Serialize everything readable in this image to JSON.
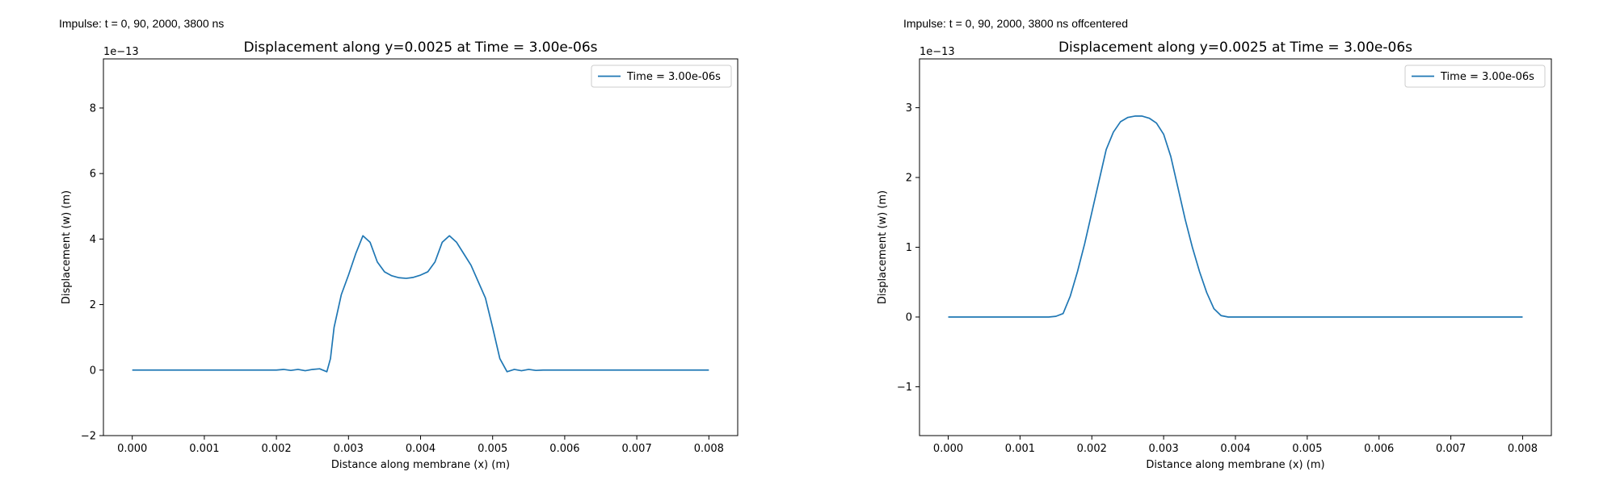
{
  "panels": [
    {
      "caption": "Impulse: t = 0, 90, 2000, 3800 ns",
      "offset_label": "1e−13"
    },
    {
      "caption": "Impulse: t = 0, 90, 2000, 3800 ns offcentered",
      "offset_label": "1e−13"
    }
  ],
  "chart_data": [
    {
      "type": "line",
      "title": "Displacement along y=0.0025 at Time = 3.00e-06s",
      "xlabel": "Distance along membrane (x) (m)",
      "ylabel": "Displacement (w) (m)",
      "xlim": [
        -0.0004,
        0.0084
      ],
      "ylim": [
        -2,
        9.5
      ],
      "y_scale_factor": "1e-13",
      "xticks": [
        "0.000",
        "0.001",
        "0.002",
        "0.003",
        "0.004",
        "0.005",
        "0.006",
        "0.007",
        "0.008"
      ],
      "yticks": [
        "−2",
        "0",
        "2",
        "4",
        "6",
        "8"
      ],
      "grid": false,
      "legend_position": "top-right",
      "series": [
        {
          "name": "Time = 3.00e-06s",
          "color": "#1f77b4",
          "x": [
            0.0,
            0.0005,
            0.001,
            0.0015,
            0.002,
            0.0021,
            0.0022,
            0.0023,
            0.0024,
            0.0025,
            0.0026,
            0.0027,
            0.00275,
            0.0028,
            0.0029,
            0.003,
            0.0031,
            0.0032,
            0.0033,
            0.0034,
            0.0035,
            0.0036,
            0.0037,
            0.0038,
            0.0039,
            0.004,
            0.0041,
            0.0042,
            0.0043,
            0.0044,
            0.0045,
            0.0046,
            0.0047,
            0.0048,
            0.0049,
            0.005,
            0.0051,
            0.0052,
            0.0053,
            0.0054,
            0.0055,
            0.0056,
            0.0057,
            0.0058,
            0.006,
            0.007,
            0.008
          ],
          "y": [
            0.0,
            0.0,
            0.0,
            0.0,
            0.0,
            0.02,
            -0.01,
            0.02,
            -0.02,
            0.02,
            0.04,
            -0.05,
            0.35,
            1.3,
            2.3,
            2.9,
            3.55,
            4.1,
            3.9,
            3.3,
            3.0,
            2.88,
            2.82,
            2.8,
            2.83,
            2.9,
            3.0,
            3.3,
            3.9,
            4.1,
            3.9,
            3.55,
            3.2,
            2.7,
            2.2,
            1.3,
            0.35,
            -0.05,
            0.02,
            -0.02,
            0.02,
            -0.01,
            0.0,
            0.0,
            0.0,
            0.0,
            0.0
          ]
        }
      ]
    },
    {
      "type": "line",
      "title": "Displacement along y=0.0025 at Time = 3.00e-06s",
      "xlabel": "Distance along membrane (x) (m)",
      "ylabel": "Displacement (w) (m)",
      "xlim": [
        -0.0004,
        0.0084
      ],
      "ylim": [
        -1.7,
        3.7
      ],
      "y_scale_factor": "1e-13",
      "xticks": [
        "0.000",
        "0.001",
        "0.002",
        "0.003",
        "0.004",
        "0.005",
        "0.006",
        "0.007",
        "0.008"
      ],
      "yticks": [
        "−1",
        "0",
        "1",
        "2",
        "3"
      ],
      "grid": false,
      "legend_position": "top-right",
      "series": [
        {
          "name": "Time = 3.00e-06s",
          "color": "#1f77b4",
          "x": [
            0.0,
            0.001,
            0.0014,
            0.0015,
            0.0016,
            0.0017,
            0.0018,
            0.0019,
            0.002,
            0.0021,
            0.0022,
            0.0023,
            0.0024,
            0.0025,
            0.0026,
            0.0027,
            0.0028,
            0.0029,
            0.003,
            0.0031,
            0.0032,
            0.0033,
            0.0034,
            0.0035,
            0.0036,
            0.0037,
            0.0038,
            0.0039,
            0.004,
            0.005,
            0.006,
            0.007,
            0.008
          ],
          "y": [
            0.0,
            0.0,
            0.0,
            0.01,
            0.05,
            0.3,
            0.65,
            1.05,
            1.5,
            1.95,
            2.4,
            2.65,
            2.8,
            2.86,
            2.88,
            2.88,
            2.85,
            2.78,
            2.62,
            2.3,
            1.85,
            1.4,
            1.0,
            0.65,
            0.35,
            0.12,
            0.02,
            0.0,
            0.0,
            0.0,
            0.0,
            0.0,
            0.0
          ]
        }
      ]
    }
  ]
}
